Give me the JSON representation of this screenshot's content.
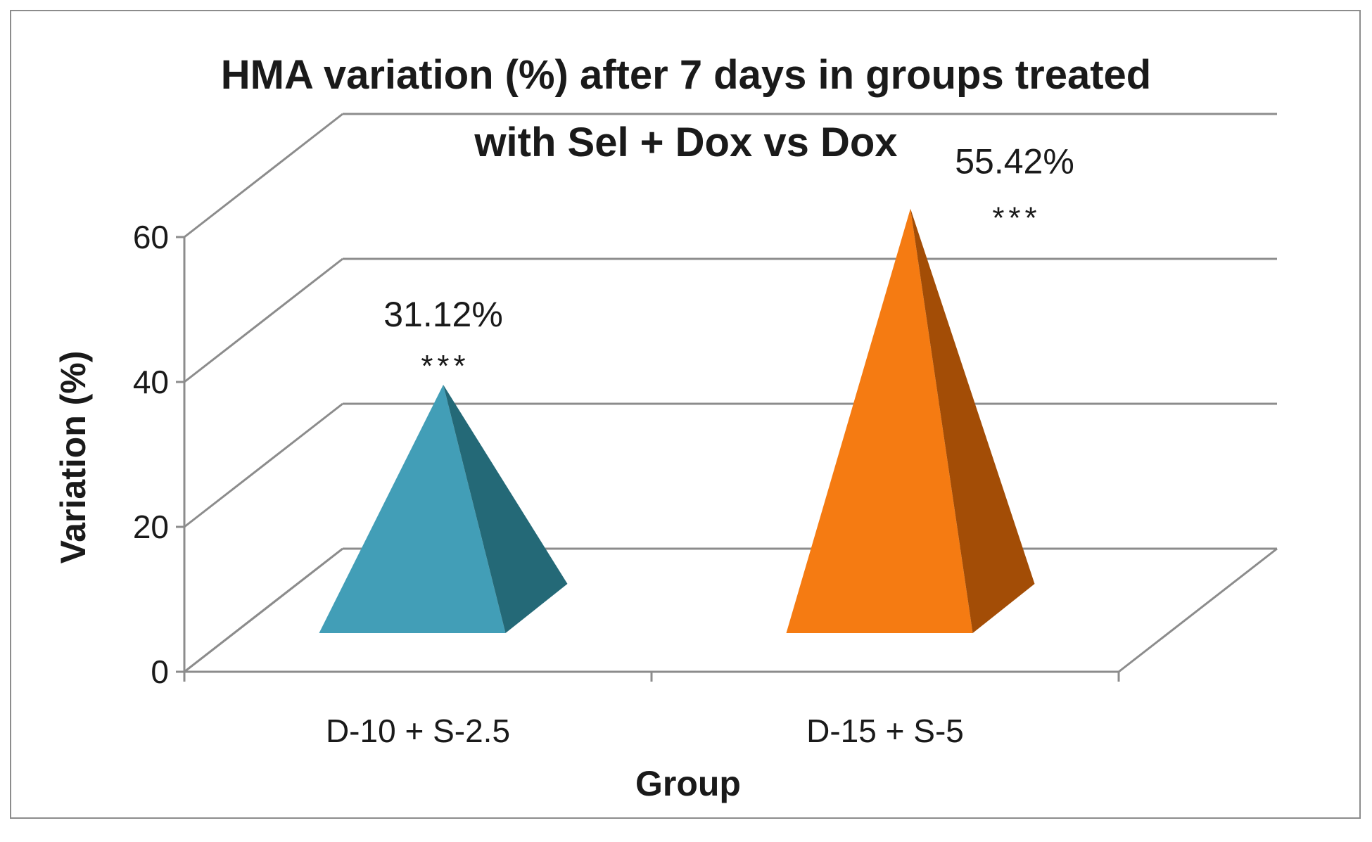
{
  "chart_data": {
    "type": "bar",
    "shape": "pyramid-3d",
    "title_lines": [
      "HMA variation (%) after 7 days in groups treated",
      "with Sel + Dox vs Dox"
    ],
    "xlabel": "Group",
    "ylabel": "Variation (%)",
    "ylim": [
      0,
      60
    ],
    "yticks": [
      0,
      20,
      40,
      60
    ],
    "grid": true,
    "categories": [
      "D-10 + S-2.5",
      "D-15 + S-5"
    ],
    "values": [
      31.12,
      55.42
    ],
    "data_labels": [
      "31.12%",
      "55.42%"
    ],
    "significance": [
      "***",
      "***"
    ],
    "colors": [
      {
        "front": "#429eb7",
        "side": "#246977"
      },
      {
        "front": "#f57b12",
        "side": "#a34d06"
      }
    ]
  }
}
